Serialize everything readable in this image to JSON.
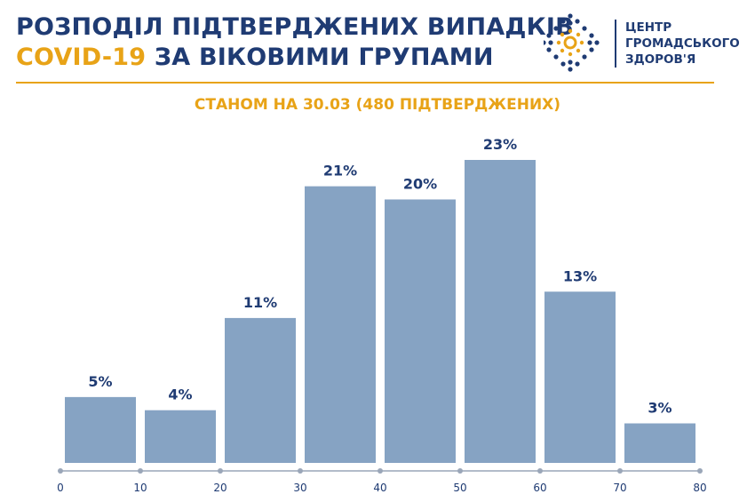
{
  "header": {
    "title_line1": "РОЗПОДІЛ ПІДТВЕРДЖЕНИХ ВИПАДКІВ",
    "title_line2_highlight": "COVID-19",
    "title_line2_rest": " ЗА ВІКОВИМИ ГРУПАМИ"
  },
  "logo": {
    "line1": "ЦЕНТР",
    "line2": "ГРОМАДСЬКОГО",
    "line3": "ЗДОРОВ'Я",
    "icon": "dots-ring-logo-icon",
    "colors": {
      "blue": "#1f3b73",
      "orange": "#e8a317"
    }
  },
  "chart_data": {
    "type": "bar",
    "subtitle": "СТАНОМ НА 30.03 (480 ПІДТВЕРДЖЕНИХ)",
    "categories": [
      "0-10",
      "10-20",
      "20-30",
      "30-40",
      "40-50",
      "50-60",
      "60-70",
      "70-80"
    ],
    "values": [
      5,
      4,
      11,
      21,
      20,
      23,
      13,
      3
    ],
    "value_labels": [
      "5%",
      "4%",
      "11%",
      "21%",
      "20%",
      "23%",
      "13%",
      "3%"
    ],
    "x_ticks": [
      "0",
      "10",
      "20",
      "30",
      "40",
      "50",
      "60",
      "70",
      "80"
    ],
    "xlim": [
      0,
      80
    ],
    "ylim": [
      0,
      23
    ],
    "grid": false,
    "bar_color": "#86a3c3",
    "label_color": "#1f3b73"
  }
}
